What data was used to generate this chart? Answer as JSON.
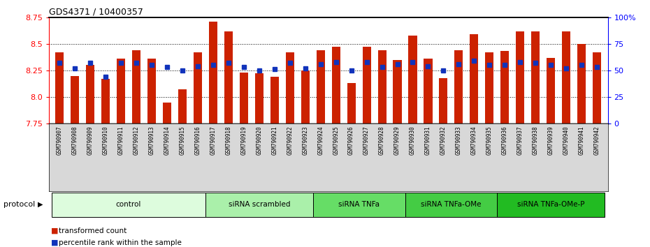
{
  "title": "GDS4371 / 10400357",
  "samples": [
    "GSM790907",
    "GSM790908",
    "GSM790909",
    "GSM790910",
    "GSM790911",
    "GSM790912",
    "GSM790913",
    "GSM790914",
    "GSM790915",
    "GSM790916",
    "GSM790917",
    "GSM790918",
    "GSM790919",
    "GSM790920",
    "GSM790921",
    "GSM790922",
    "GSM790923",
    "GSM790924",
    "GSM790925",
    "GSM790926",
    "GSM790927",
    "GSM790928",
    "GSM790929",
    "GSM790930",
    "GSM790931",
    "GSM790932",
    "GSM790933",
    "GSM790934",
    "GSM790935",
    "GSM790936",
    "GSM790937",
    "GSM790938",
    "GSM790939",
    "GSM790940",
    "GSM790941",
    "GSM790942"
  ],
  "bar_values": [
    8.42,
    8.2,
    8.3,
    8.17,
    8.36,
    8.44,
    8.36,
    7.95,
    8.07,
    8.42,
    8.71,
    8.62,
    8.23,
    8.22,
    8.19,
    8.42,
    8.25,
    8.44,
    8.47,
    8.13,
    8.47,
    8.44,
    8.35,
    8.58,
    8.36,
    8.18,
    8.44,
    8.59,
    8.42,
    8.43,
    8.62,
    8.62,
    8.37,
    8.62,
    8.5,
    8.42
  ],
  "percentile_values": [
    57,
    52,
    57,
    44,
    57,
    57,
    55,
    53,
    50,
    54,
    55,
    57,
    53,
    50,
    51,
    57,
    52,
    56,
    58,
    50,
    58,
    53,
    56,
    58,
    54,
    50,
    56,
    59,
    55,
    55,
    58,
    57,
    55,
    52,
    55,
    53
  ],
  "ymin": 7.75,
  "ymax": 8.75,
  "yticks_left": [
    7.75,
    8.0,
    8.25,
    8.5,
    8.75
  ],
  "yticks_right": [
    0,
    25,
    50,
    75,
    100
  ],
  "ytick_right_labels": [
    "0",
    "25",
    "50",
    "75",
    "100%"
  ],
  "grid_lines": [
    8.0,
    8.25,
    8.5
  ],
  "bar_color": "#cc2200",
  "percentile_color": "#1133bb",
  "groups": [
    {
      "label": "control",
      "start": 0,
      "end": 10,
      "color": "#ddfcdd"
    },
    {
      "label": "siRNA scrambled",
      "start": 10,
      "end": 17,
      "color": "#aaf0aa"
    },
    {
      "label": "siRNA TNFa",
      "start": 17,
      "end": 23,
      "color": "#66dd66"
    },
    {
      "label": "siRNA TNFa-OMe",
      "start": 23,
      "end": 29,
      "color": "#44cc44"
    },
    {
      "label": "siRNA TNFa-OMe-P",
      "start": 29,
      "end": 36,
      "color": "#22bb22"
    }
  ],
  "legend_bar_label": "transformed count",
  "legend_pct_label": "percentile rank within the sample",
  "protocol_label": "protocol"
}
